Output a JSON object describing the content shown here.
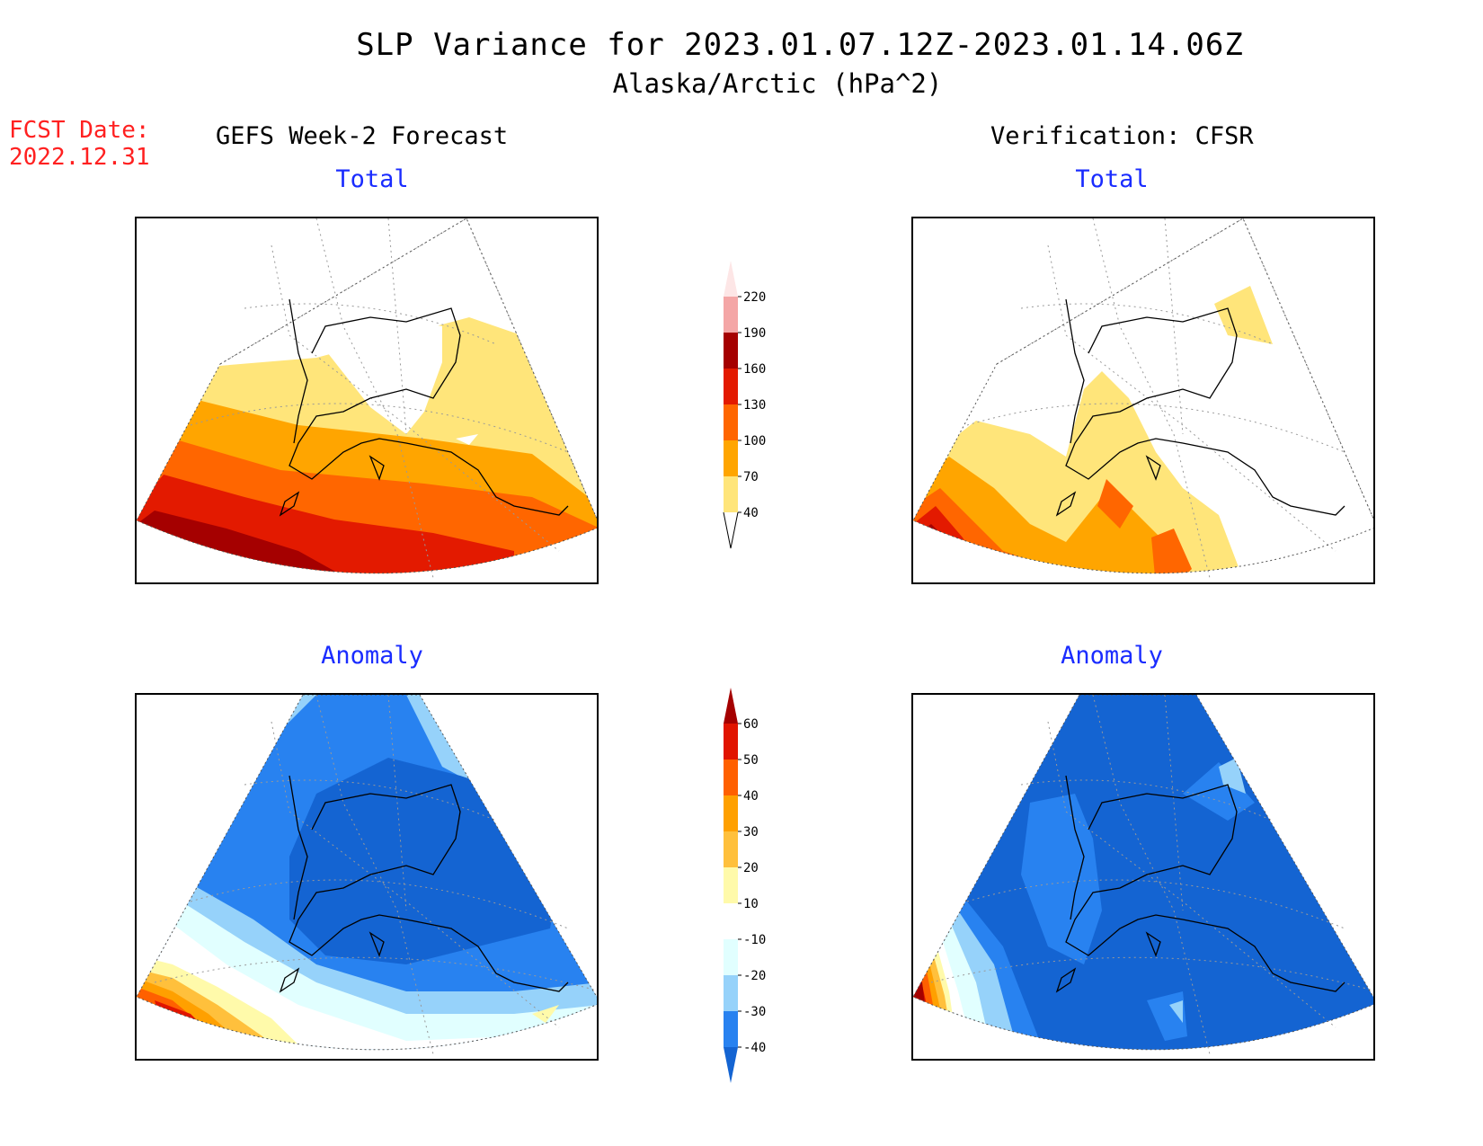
{
  "header": {
    "title": "SLP Variance for 2023.01.07.12Z-2023.01.14.06Z",
    "subtitle": "Alaska/Arctic (hPa^2)",
    "fcst_label": "FCST Date:",
    "fcst_date": "2022.12.31"
  },
  "columns": {
    "forecast": "GEFS Week-2 Forecast",
    "verification": "Verification: CFSR"
  },
  "panels": {
    "fc_total": "Total",
    "ver_total": "Total",
    "fc_anom": "Anomaly",
    "ver_anom": "Anomaly"
  },
  "total_colorbar": {
    "ticks": [
      "40",
      "70",
      "100",
      "130",
      "160",
      "190",
      "220"
    ],
    "colors": [
      "#ffe57a",
      "#ffa500",
      "#ff6600",
      "#e31a00",
      "#a50000",
      "#f4a6a6",
      "#fde6e6"
    ]
  },
  "anomaly_colorbar": {
    "ticks": [
      "-40",
      "-30",
      "-20",
      "-10",
      "10",
      "20",
      "30",
      "40",
      "50",
      "60"
    ],
    "colors": [
      "#1464d2",
      "#2882f0",
      "#96d2fa",
      "#e1ffff",
      "#ffffff",
      "#fffaaa",
      "#ffc03c",
      "#ffa000",
      "#ff6000",
      "#e11400",
      "#a50000"
    ]
  }
}
